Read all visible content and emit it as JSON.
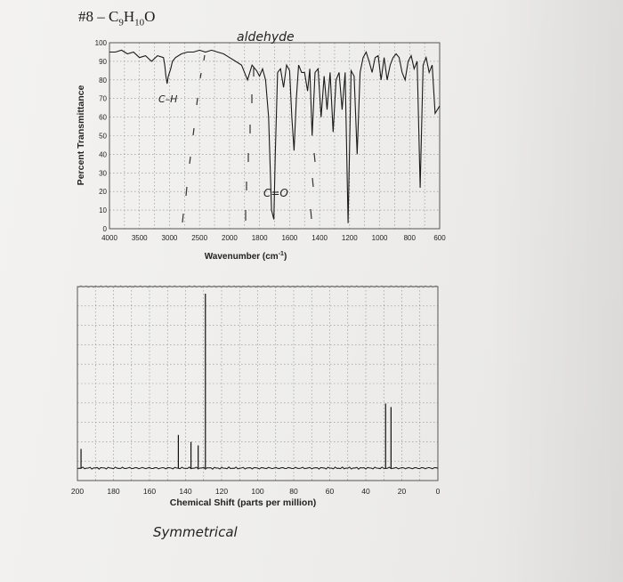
{
  "page": {
    "problem_label": "#8 –",
    "formula_parts": [
      "C",
      "9",
      "H",
      "10",
      "O"
    ]
  },
  "annotations": {
    "aldehyde": "aldehyde",
    "ch": "C–H",
    "co": "C=O",
    "symmetrical": "Symmetrical"
  },
  "chart_data": [
    {
      "type": "line",
      "name": "IR spectrum",
      "xlabel": "Wavenumber (cm",
      "xlabel_sup": "-1",
      "xlabel_end": ")",
      "ylabel": "Percent Transmittance",
      "xlim": [
        4000,
        600
      ],
      "ylim": [
        0,
        100
      ],
      "x_ticks": [
        4000,
        3500,
        3000,
        2500,
        2000,
        1800,
        1600,
        1400,
        1200,
        1000,
        800,
        600
      ],
      "y_ticks": [
        0,
        10,
        20,
        30,
        40,
        50,
        60,
        70,
        80,
        90,
        100
      ],
      "grid": true,
      "series": [
        {
          "x": [
            4000,
            3900,
            3800,
            3700,
            3600,
            3500,
            3400,
            3300,
            3200,
            3100,
            3080,
            3060,
            3040,
            3020,
            3000,
            2980,
            2950,
            2900,
            2800,
            2700,
            2600,
            2500,
            2400,
            2300,
            2200,
            2100,
            2000,
            1960,
            1920,
            1880,
            1850,
            1820,
            1800,
            1780,
            1760,
            1740,
            1720,
            1705,
            1695,
            1680,
            1660,
            1640,
            1620,
            1600,
            1585,
            1570,
            1555,
            1540,
            1520,
            1500,
            1480,
            1465,
            1450,
            1430,
            1410,
            1390,
            1370,
            1350,
            1330,
            1310,
            1290,
            1270,
            1250,
            1230,
            1210,
            1190,
            1170,
            1150,
            1130,
            1110,
            1090,
            1070,
            1050,
            1030,
            1010,
            990,
            970,
            950,
            930,
            910,
            890,
            870,
            850,
            830,
            810,
            790,
            770,
            750,
            730,
            710,
            690,
            670,
            650,
            630,
            600
          ],
          "y": [
            95,
            95,
            96,
            94,
            95,
            92,
            93,
            90,
            93,
            92,
            88,
            82,
            78,
            82,
            84,
            86,
            90,
            92,
            94,
            95,
            95,
            96,
            95,
            96,
            95,
            94,
            92,
            90,
            88,
            80,
            88,
            85,
            82,
            86,
            80,
            60,
            10,
            5,
            40,
            84,
            86,
            76,
            88,
            85,
            60,
            42,
            70,
            88,
            84,
            84,
            74,
            86,
            50,
            84,
            86,
            60,
            82,
            64,
            84,
            52,
            80,
            84,
            64,
            84,
            3,
            85,
            82,
            40,
            84,
            92,
            95,
            90,
            84,
            92,
            93,
            80,
            92,
            80,
            88,
            92,
            94,
            92,
            84,
            80,
            90,
            93,
            86,
            90,
            22,
            88,
            92,
            84,
            88,
            62,
            66
          ]
        }
      ]
    },
    {
      "type": "bar",
      "name": "13C NMR spectrum",
      "xlabel": "Chemical Shift (parts per million)",
      "xlim": [
        200,
        0
      ],
      "x_ticks": [
        200,
        180,
        160,
        140,
        120,
        100,
        80,
        60,
        40,
        20,
        0
      ],
      "ylim": [
        0,
        100
      ],
      "grid": true,
      "peaks": [
        {
          "x": 198,
          "height": 11
        },
        {
          "x": 144,
          "height": 19
        },
        {
          "x": 137,
          "height": 15
        },
        {
          "x": 133,
          "height": 13
        },
        {
          "x": 129,
          "height": 100
        },
        {
          "x": 29,
          "height": 37
        },
        {
          "x": 26,
          "height": 35
        }
      ]
    }
  ]
}
